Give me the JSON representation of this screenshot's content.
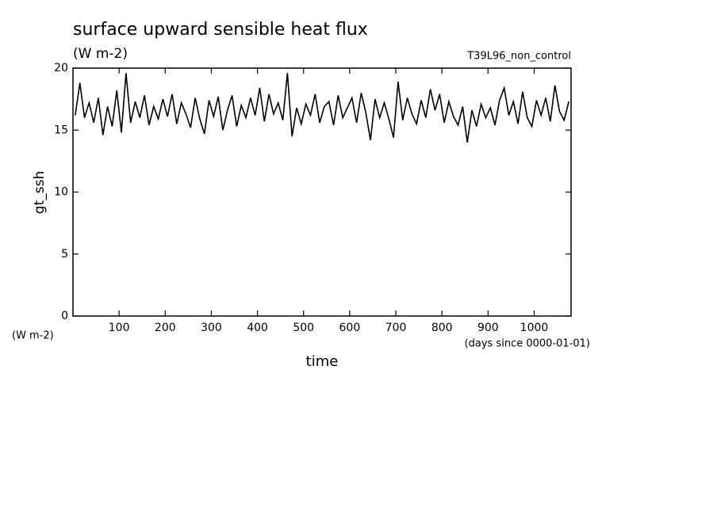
{
  "chart_data": {
    "type": "line",
    "title": "surface upward sensible heat flux",
    "subtitle": "(W m-2)",
    "experiment": "T39L96_non_control",
    "y_label": "gt_ssh",
    "y_unit": "(W m-2)",
    "x_label": "time",
    "x_unit": "(days since 0000-01-01)",
    "xlim": [
      0,
      1080
    ],
    "xticks": [
      100,
      200,
      300,
      400,
      500,
      600,
      700,
      800,
      900,
      1000
    ],
    "ylim": [
      0,
      20
    ],
    "yticks": [
      0,
      5,
      10,
      15,
      20
    ],
    "x": [
      5,
      15,
      25,
      35,
      45,
      55,
      65,
      75,
      85,
      95,
      105,
      115,
      125,
      135,
      145,
      155,
      165,
      175,
      185,
      195,
      205,
      215,
      225,
      235,
      245,
      255,
      265,
      275,
      285,
      295,
      305,
      315,
      325,
      335,
      345,
      355,
      365,
      375,
      385,
      395,
      405,
      415,
      425,
      435,
      445,
      455,
      465,
      475,
      485,
      495,
      505,
      515,
      525,
      535,
      545,
      555,
      565,
      575,
      585,
      595,
      605,
      615,
      625,
      635,
      645,
      655,
      665,
      675,
      685,
      695,
      705,
      715,
      725,
      735,
      745,
      755,
      765,
      775,
      785,
      795,
      805,
      815,
      825,
      835,
      845,
      855,
      865,
      875,
      885,
      895,
      905,
      915,
      925,
      935,
      945,
      955,
      965,
      975,
      985,
      995,
      1005,
      1015,
      1025,
      1035,
      1045,
      1055,
      1065,
      1075
    ],
    "series": [
      {
        "color": "#000000",
        "values": [
          16.2,
          18.8,
          16.0,
          17.2,
          15.6,
          17.6,
          14.6,
          16.9,
          15.3,
          18.2,
          14.8,
          19.6,
          15.6,
          17.3,
          16.0,
          17.8,
          15.4,
          16.9,
          15.9,
          17.5,
          16.1,
          17.9,
          15.5,
          17.2,
          16.3,
          15.2,
          17.6,
          15.9,
          14.7,
          17.4,
          16.1,
          17.7,
          15.0,
          16.6,
          17.8,
          15.3,
          17.0,
          16.0,
          17.6,
          16.2,
          18.4,
          15.7,
          17.9,
          16.3,
          17.2,
          15.8,
          19.6,
          14.5,
          16.8,
          15.5,
          17.1,
          16.2,
          17.9,
          15.6,
          16.9,
          17.3,
          15.4,
          17.8,
          16.0,
          16.8,
          17.6,
          15.6,
          18.0,
          16.4,
          14.2,
          17.5,
          16.0,
          17.2,
          15.9,
          14.4,
          18.9,
          15.8,
          17.6,
          16.3,
          15.5,
          17.4,
          16.0,
          18.3,
          16.6,
          17.9,
          15.6,
          17.3,
          16.1,
          15.4,
          16.9,
          14.0,
          16.6,
          15.3,
          17.1,
          16.0,
          16.8,
          15.4,
          17.4,
          18.4,
          16.2,
          17.3,
          15.5,
          18.1,
          16.0,
          15.3,
          17.4,
          16.2,
          17.6,
          15.7,
          18.6,
          16.5,
          15.8,
          17.3
        ]
      }
    ]
  }
}
